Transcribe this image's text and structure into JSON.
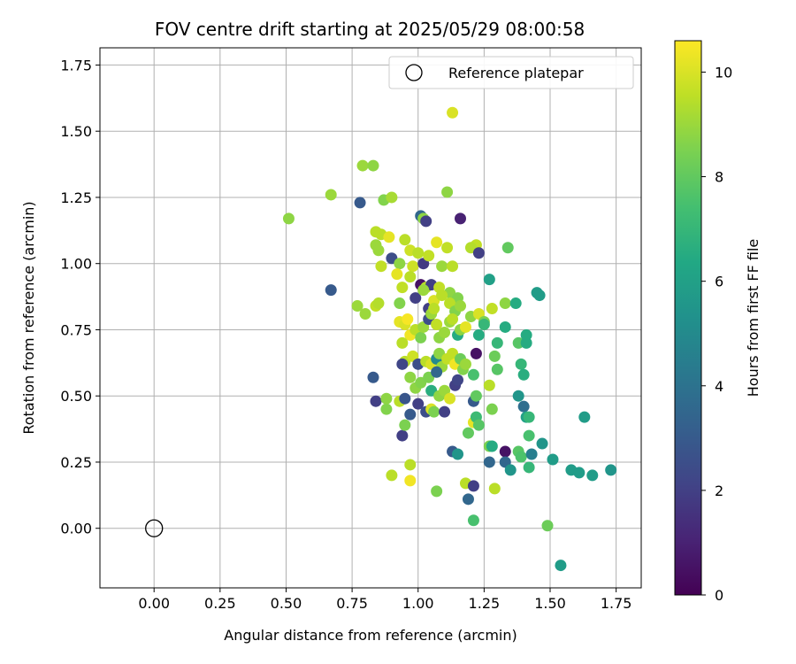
{
  "chart_data": {
    "type": "scatter",
    "title": "FOV centre drift starting at 2025/05/29 08:00:58",
    "xlabel": "Angular distance from reference (arcmin)",
    "ylabel": "Rotation from reference (arcmin)",
    "xlim": [
      -0.205,
      1.845
    ],
    "ylim": [
      -0.225,
      1.815
    ],
    "xticks": [
      "0.00",
      "0.25",
      "0.50",
      "0.75",
      "1.00",
      "1.25",
      "1.50",
      "1.75"
    ],
    "yticks": [
      "0.00",
      "0.25",
      "0.50",
      "0.75",
      "1.00",
      "1.25",
      "1.50",
      "1.75"
    ],
    "grid": true,
    "legend": {
      "position": "top-right",
      "entries": [
        "Reference platepar"
      ]
    },
    "colorbar": {
      "label": "Hours from first FF file",
      "colormap": "viridis",
      "range": [
        0,
        10.6
      ],
      "ticks": [
        "0",
        "2",
        "4",
        "6",
        "8",
        "10"
      ]
    },
    "reference_point": {
      "x": 0.0,
      "y": 0.0
    },
    "points": [
      [
        1.13,
        1.57,
        10.0
      ],
      [
        0.79,
        1.37,
        9.0
      ],
      [
        0.83,
        1.37,
        8.8
      ],
      [
        0.67,
        1.26,
        9.0
      ],
      [
        0.87,
        1.24,
        8.6
      ],
      [
        0.9,
        1.25,
        9.2
      ],
      [
        0.51,
        1.17,
        8.8
      ],
      [
        0.78,
        1.23,
        3.0
      ],
      [
        1.11,
        1.27,
        8.8
      ],
      [
        1.01,
        1.18,
        3.5
      ],
      [
        1.02,
        1.17,
        8.8
      ],
      [
        1.03,
        1.16,
        2.0
      ],
      [
        1.16,
        1.17,
        1.0
      ],
      [
        0.84,
        1.12,
        9.5
      ],
      [
        0.86,
        1.11,
        9.5
      ],
      [
        0.89,
        1.1,
        10.2
      ],
      [
        0.95,
        1.09,
        9.5
      ],
      [
        0.97,
        1.05,
        9.8
      ],
      [
        1.0,
        1.04,
        9.5
      ],
      [
        1.07,
        1.08,
        10.2
      ],
      [
        1.11,
        1.06,
        9.6
      ],
      [
        1.22,
        1.07,
        9.6
      ],
      [
        1.2,
        1.06,
        9.4
      ],
      [
        1.34,
        1.06,
        8.0
      ],
      [
        0.84,
        1.07,
        9.0
      ],
      [
        0.85,
        1.05,
        9.0
      ],
      [
        0.9,
        1.02,
        2.5
      ],
      [
        0.93,
        1.0,
        8.8
      ],
      [
        0.98,
        0.99,
        9.8
      ],
      [
        1.02,
        1.0,
        1.8
      ],
      [
        1.04,
        1.03,
        9.6
      ],
      [
        1.09,
        0.99,
        9.0
      ],
      [
        1.13,
        0.99,
        9.5
      ],
      [
        1.23,
        1.04,
        2.0
      ],
      [
        0.86,
        0.99,
        9.6
      ],
      [
        0.92,
        0.96,
        10.2
      ],
      [
        0.94,
        0.91,
        9.6
      ],
      [
        0.97,
        0.95,
        9.5
      ],
      [
        1.01,
        0.92,
        0.5
      ],
      [
        1.03,
        0.91,
        9.5
      ],
      [
        1.05,
        0.92,
        2.0
      ],
      [
        1.08,
        0.91,
        9.6
      ],
      [
        1.12,
        0.89,
        8.8
      ],
      [
        1.15,
        0.87,
        8.6
      ],
      [
        1.27,
        0.94,
        6.0
      ],
      [
        0.67,
        0.9,
        3.0
      ],
      [
        0.77,
        0.84,
        9.0
      ],
      [
        0.8,
        0.81,
        9.0
      ],
      [
        0.84,
        0.84,
        9.6
      ],
      [
        0.85,
        0.85,
        9.4
      ],
      [
        0.93,
        0.85,
        8.6
      ],
      [
        0.99,
        0.87,
        2.0
      ],
      [
        1.02,
        0.9,
        9.0
      ],
      [
        1.04,
        0.83,
        2.0
      ],
      [
        1.06,
        0.86,
        10.0
      ],
      [
        1.09,
        0.88,
        9.5
      ],
      [
        1.12,
        0.85,
        9.5
      ],
      [
        1.14,
        0.82,
        8.6
      ],
      [
        1.16,
        0.84,
        9.0
      ],
      [
        1.2,
        0.8,
        8.8
      ],
      [
        1.23,
        0.81,
        10.0
      ],
      [
        1.25,
        0.78,
        8.5
      ],
      [
        1.28,
        0.83,
        9.6
      ],
      [
        1.33,
        0.85,
        8.8
      ],
      [
        1.37,
        0.85,
        6.5
      ],
      [
        1.45,
        0.89,
        5.8
      ],
      [
        1.46,
        0.88,
        5.8
      ],
      [
        0.93,
        0.78,
        10.2
      ],
      [
        0.95,
        0.77,
        10.0
      ],
      [
        0.96,
        0.79,
        10.5
      ],
      [
        0.97,
        0.73,
        10.4
      ],
      [
        0.99,
        0.75,
        9.5
      ],
      [
        1.01,
        0.72,
        8.5
      ],
      [
        1.02,
        0.76,
        9.0
      ],
      [
        1.04,
        0.79,
        2.5
      ],
      [
        1.05,
        0.81,
        9.0
      ],
      [
        1.06,
        0.83,
        9.5
      ],
      [
        1.07,
        0.77,
        9.6
      ],
      [
        1.08,
        0.72,
        8.8
      ],
      [
        1.1,
        0.74,
        9.0
      ],
      [
        1.12,
        0.78,
        9.0
      ],
      [
        1.13,
        0.79,
        9.5
      ],
      [
        1.15,
        0.73,
        6.5
      ],
      [
        1.16,
        0.75,
        8.8
      ],
      [
        1.18,
        0.76,
        10.2
      ],
      [
        1.22,
        0.66,
        0.5
      ],
      [
        1.23,
        0.73,
        6.5
      ],
      [
        1.25,
        0.77,
        7.0
      ],
      [
        1.3,
        0.7,
        7.0
      ],
      [
        1.33,
        0.76,
        6.5
      ],
      [
        1.38,
        0.7,
        7.8
      ],
      [
        1.41,
        0.73,
        6.5
      ],
      [
        1.41,
        0.7,
        6.5
      ],
      [
        0.94,
        0.7,
        9.5
      ],
      [
        0.95,
        0.63,
        9.5
      ],
      [
        0.98,
        0.65,
        9.8
      ],
      [
        1.0,
        0.62,
        2.5
      ],
      [
        1.03,
        0.63,
        9.5
      ],
      [
        1.05,
        0.62,
        10.0
      ],
      [
        1.07,
        0.64,
        5.0
      ],
      [
        1.08,
        0.66,
        8.8
      ],
      [
        1.09,
        0.61,
        9.0
      ],
      [
        1.11,
        0.64,
        9.6
      ],
      [
        1.13,
        0.66,
        9.6
      ],
      [
        1.14,
        0.62,
        10.4
      ],
      [
        1.16,
        0.64,
        8.2
      ],
      [
        1.17,
        0.6,
        8.6
      ],
      [
        1.18,
        0.62,
        9.0
      ],
      [
        1.21,
        0.58,
        7.5
      ],
      [
        1.29,
        0.65,
        8.2
      ],
      [
        1.3,
        0.6,
        7.8
      ],
      [
        1.39,
        0.62,
        7.0
      ],
      [
        1.4,
        0.58,
        6.6
      ],
      [
        0.83,
        0.57,
        3.0
      ],
      [
        0.94,
        0.62,
        2.2
      ],
      [
        0.97,
        0.57,
        8.8
      ],
      [
        0.99,
        0.53,
        8.8
      ],
      [
        1.01,
        0.55,
        8.6
      ],
      [
        1.04,
        0.57,
        8.5
      ],
      [
        1.05,
        0.52,
        6.6
      ],
      [
        1.07,
        0.59,
        3.5
      ],
      [
        1.08,
        0.5,
        8.8
      ],
      [
        1.1,
        0.52,
        9.0
      ],
      [
        1.12,
        0.49,
        10.0
      ],
      [
        1.14,
        0.54,
        2.0
      ],
      [
        1.15,
        0.56,
        2.2
      ],
      [
        1.21,
        0.48,
        3.0
      ],
      [
        1.22,
        0.5,
        8.0
      ],
      [
        1.27,
        0.54,
        9.5
      ],
      [
        1.28,
        0.45,
        8.5
      ],
      [
        1.38,
        0.5,
        5.5
      ],
      [
        1.4,
        0.46,
        3.8
      ],
      [
        1.41,
        0.42,
        6.0
      ],
      [
        1.42,
        0.42,
        7.0
      ],
      [
        0.84,
        0.48,
        2.0
      ],
      [
        0.88,
        0.45,
        8.6
      ],
      [
        0.88,
        0.49,
        8.8
      ],
      [
        0.93,
        0.48,
        9.5
      ],
      [
        0.95,
        0.49,
        2.8
      ],
      [
        0.97,
        0.43,
        3.0
      ],
      [
        1.0,
        0.47,
        2.0
      ],
      [
        1.03,
        0.44,
        2.5
      ],
      [
        1.05,
        0.45,
        10.0
      ],
      [
        1.06,
        0.44,
        8.5
      ],
      [
        1.1,
        0.44,
        2.0
      ],
      [
        1.19,
        0.36,
        8.0
      ],
      [
        1.21,
        0.4,
        10.2
      ],
      [
        1.22,
        0.42,
        7.2
      ],
      [
        1.23,
        0.39,
        7.8
      ],
      [
        0.94,
        0.35,
        2.0
      ],
      [
        0.95,
        0.39,
        8.5
      ],
      [
        1.13,
        0.29,
        3.0
      ],
      [
        1.15,
        0.28,
        5.5
      ],
      [
        1.27,
        0.31,
        8.5
      ],
      [
        1.28,
        0.31,
        6.5
      ],
      [
        1.33,
        0.29,
        0.5
      ],
      [
        1.38,
        0.29,
        7.8
      ],
      [
        1.39,
        0.27,
        7.6
      ],
      [
        1.42,
        0.35,
        7.5
      ],
      [
        1.43,
        0.28,
        4.5
      ],
      [
        1.47,
        0.32,
        5.5
      ],
      [
        1.27,
        0.25,
        3.5
      ],
      [
        1.33,
        0.25,
        3.5
      ],
      [
        1.35,
        0.22,
        5.5
      ],
      [
        1.42,
        0.23,
        7.0
      ],
      [
        1.51,
        0.26,
        5.8
      ],
      [
        1.58,
        0.22,
        5.8
      ],
      [
        1.61,
        0.21,
        5.8
      ],
      [
        1.66,
        0.2,
        5.8
      ],
      [
        1.73,
        0.22,
        5.5
      ],
      [
        1.63,
        0.42,
        5.8
      ],
      [
        0.97,
        0.24,
        9.5
      ],
      [
        0.9,
        0.2,
        9.5
      ],
      [
        0.97,
        0.18,
        10.4
      ],
      [
        1.07,
        0.14,
        8.5
      ],
      [
        1.18,
        0.17,
        9.5
      ],
      [
        1.19,
        0.11,
        3.5
      ],
      [
        1.21,
        0.16,
        2.0
      ],
      [
        1.29,
        0.15,
        9.5
      ],
      [
        1.21,
        0.03,
        7.5
      ],
      [
        1.49,
        0.01,
        8.2
      ],
      [
        1.54,
        -0.14,
        5.8
      ]
    ]
  }
}
